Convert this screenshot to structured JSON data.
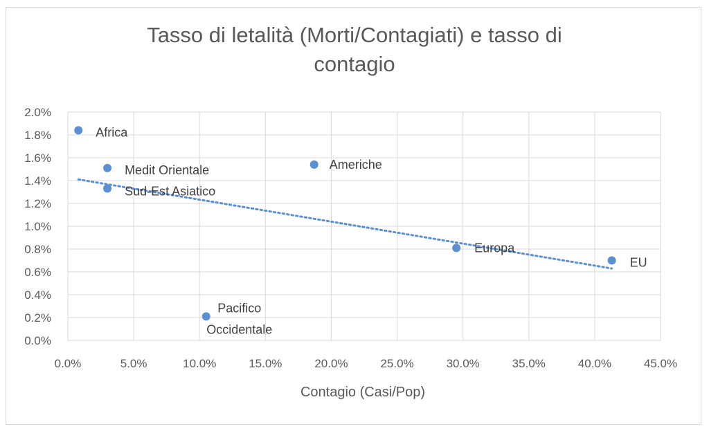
{
  "chart_data": {
    "type": "scatter",
    "title_lines": [
      "Tasso di letalità (Morti/Contagiati) e tasso di",
      "contagio"
    ],
    "xlabel": "Contagio (Casi/Pop)",
    "ylabel": "",
    "xlim": [
      0,
      45
    ],
    "ylim": [
      0,
      2.0
    ],
    "x_ticks": [
      "0.0%",
      "5.0%",
      "10.0%",
      "15.0%",
      "20.0%",
      "25.0%",
      "30.0%",
      "35.0%",
      "40.0%",
      "45.0%"
    ],
    "y_ticks": [
      "0.0%",
      "0.2%",
      "0.4%",
      "0.6%",
      "0.8%",
      "1.0%",
      "1.2%",
      "1.4%",
      "1.6%",
      "1.8%",
      "2.0%"
    ],
    "grid": true,
    "marker_color": "#5b8fd0",
    "trendline": {
      "type": "linear",
      "style": "dotted",
      "color": "#5b8fd0",
      "x": [
        0.8,
        41.3
      ],
      "y": [
        1.41,
        0.63
      ]
    },
    "points": [
      {
        "label": [
          "Africa"
        ],
        "x": 0.8,
        "y": 1.84
      },
      {
        "label": [
          "Medit Orientale"
        ],
        "x": 3.0,
        "y": 1.51
      },
      {
        "label": [
          "Sud-Est Asiatico"
        ],
        "x": 3.0,
        "y": 1.33
      },
      {
        "label": [
          "Americhe"
        ],
        "x": 18.7,
        "y": 1.54
      },
      {
        "label": [
          "Europa"
        ],
        "x": 29.5,
        "y": 0.81
      },
      {
        "label": [
          "EU"
        ],
        "x": 41.3,
        "y": 0.7
      },
      {
        "label": [
          "Pacifico",
          "Occidentale"
        ],
        "x": 10.5,
        "y": 0.21
      }
    ]
  }
}
